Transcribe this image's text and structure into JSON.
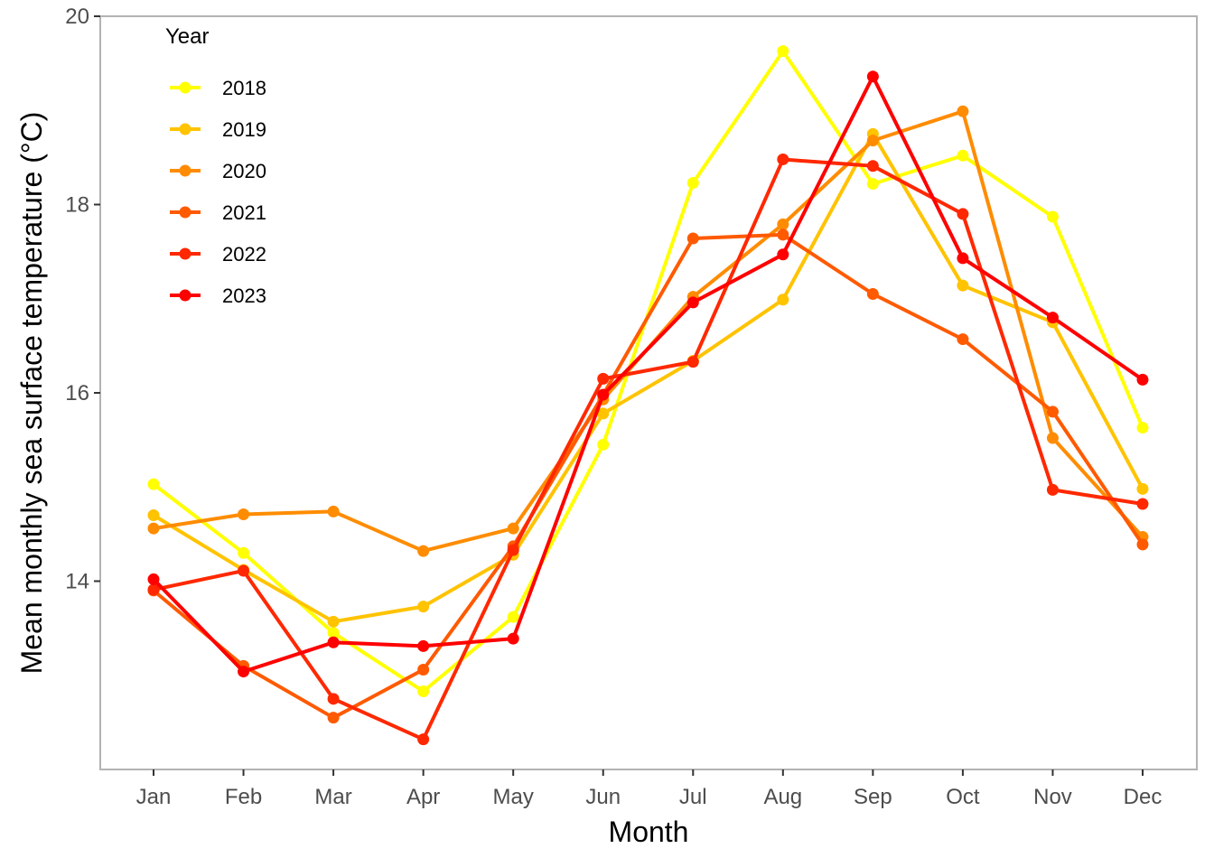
{
  "chart_data": {
    "type": "line",
    "xlabel": "Month",
    "ylabel": "Mean monthly sea surface temperature (°C)",
    "categories": [
      "Jan",
      "Feb",
      "Mar",
      "Apr",
      "May",
      "Jun",
      "Jul",
      "Aug",
      "Sep",
      "Oct",
      "Nov",
      "Dec"
    ],
    "ylim": [
      12.0,
      20.0
    ],
    "yticks": [
      14,
      16,
      18,
      20
    ],
    "grid": false,
    "legend": {
      "title": "Year",
      "placement": "top-left inside"
    },
    "series": [
      {
        "name": "2018",
        "color": "#FFFF00",
        "values": [
          15.03,
          14.3,
          13.45,
          12.83,
          13.62,
          15.45,
          18.23,
          19.63,
          18.22,
          18.52,
          17.87,
          15.63
        ]
      },
      {
        "name": "2019",
        "color": "#FFC300",
        "values": [
          14.7,
          14.12,
          13.57,
          13.73,
          14.28,
          15.78,
          16.34,
          16.99,
          18.75,
          17.14,
          16.75,
          14.98
        ]
      },
      {
        "name": "2020",
        "color": "#FF8C00",
        "values": [
          14.56,
          14.71,
          14.74,
          14.32,
          14.56,
          15.93,
          17.02,
          17.79,
          18.68,
          18.99,
          15.52,
          14.47
        ]
      },
      {
        "name": "2021",
        "color": "#FF5A00",
        "values": [
          13.9,
          13.1,
          12.55,
          13.06,
          14.37,
          15.98,
          17.64,
          17.68,
          17.05,
          16.57,
          15.8,
          14.39
        ]
      },
      {
        "name": "2022",
        "color": "#FF2800",
        "values": [
          13.91,
          14.11,
          12.75,
          12.32,
          14.33,
          16.15,
          16.33,
          18.48,
          18.41,
          17.9,
          14.97,
          14.82
        ]
      },
      {
        "name": "2023",
        "color": "#FF0000",
        "values": [
          14.02,
          13.04,
          13.35,
          13.31,
          13.39,
          15.98,
          16.96,
          17.47,
          19.36,
          17.43,
          16.8,
          16.14
        ]
      }
    ]
  }
}
